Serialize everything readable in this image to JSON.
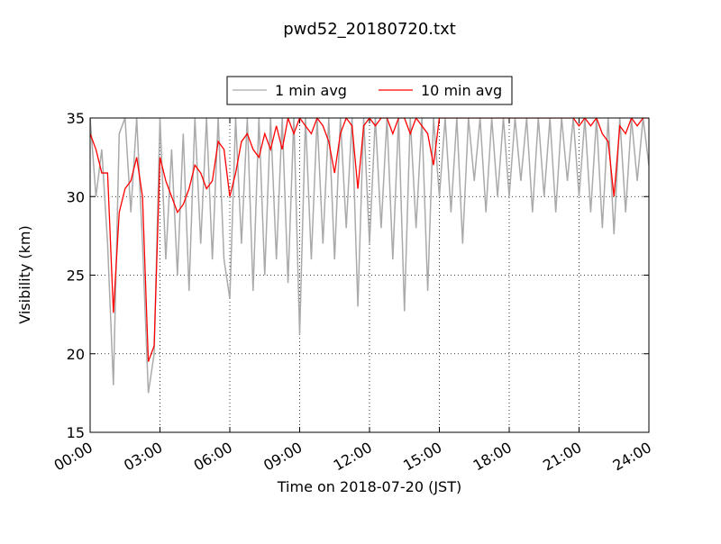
{
  "chart_data": {
    "type": "line",
    "title": "pwd52_20180720.txt",
    "xlabel": "Time on 2018-07-20 (JST)",
    "ylabel": "Visibility (km)",
    "x": [
      0,
      0.25,
      0.5,
      0.75,
      1,
      1.25,
      1.5,
      1.75,
      2,
      2.25,
      2.5,
      2.75,
      3,
      3.25,
      3.5,
      3.75,
      4,
      4.25,
      4.5,
      4.75,
      5,
      5.25,
      5.5,
      5.75,
      6,
      6.25,
      6.5,
      6.75,
      7,
      7.25,
      7.5,
      7.75,
      8,
      8.25,
      8.5,
      8.75,
      9,
      9.25,
      9.5,
      9.75,
      10,
      10.25,
      10.5,
      10.75,
      11,
      11.25,
      11.5,
      11.75,
      12,
      12.25,
      12.5,
      12.75,
      13,
      13.25,
      13.5,
      13.75,
      14,
      14.25,
      14.5,
      14.75,
      15,
      15.25,
      15.5,
      15.75,
      16,
      16.25,
      16.5,
      16.75,
      17,
      17.25,
      17.5,
      17.75,
      18,
      18.25,
      18.5,
      18.75,
      19,
      19.25,
      19.5,
      19.75,
      20,
      20.25,
      20.5,
      20.75,
      21,
      21.25,
      21.5,
      21.75,
      22,
      22.25,
      22.5,
      22.75,
      23,
      23.25,
      23.5,
      23.75,
      24
    ],
    "series": [
      {
        "name": "1 min avg",
        "color": "#aaaaaa",
        "values": [
          35,
          30,
          33,
          27,
          18,
          34,
          35,
          29,
          35,
          27,
          17.5,
          20,
          35,
          26,
          33,
          25,
          34,
          24,
          35,
          27,
          35,
          26,
          35,
          26,
          23.5,
          35,
          27,
          35,
          24,
          35,
          25,
          35,
          26,
          35,
          24.5,
          35,
          21.2,
          35,
          26,
          35,
          27,
          35,
          26,
          35,
          28,
          35,
          23,
          35,
          27,
          35,
          28,
          35,
          26,
          35,
          22.7,
          35,
          28,
          35,
          24,
          35,
          30,
          35,
          29,
          35,
          27,
          35,
          31,
          35,
          29,
          35,
          30,
          35,
          30,
          35,
          31,
          35,
          29,
          35,
          30,
          35,
          29,
          35,
          31,
          35,
          30,
          35,
          29,
          35,
          28,
          35,
          27.6,
          35,
          29,
          35,
          31,
          35,
          32
        ]
      },
      {
        "name": "10 min avg",
        "color": "#ff0000",
        "values": [
          34,
          33,
          31.5,
          31.5,
          22.6,
          29,
          30.5,
          31,
          32.5,
          30,
          19.5,
          20.5,
          32.5,
          31,
          30,
          29,
          29.5,
          30.5,
          32,
          31.5,
          30.5,
          31,
          33.5,
          33,
          30,
          31.5,
          33.5,
          34,
          33,
          32.5,
          34,
          33,
          34.5,
          33,
          35,
          34,
          35,
          34.5,
          34,
          35,
          34.5,
          33.5,
          31.5,
          34,
          35,
          34.5,
          30.5,
          34.5,
          35,
          34.5,
          35,
          35,
          34,
          35,
          35,
          34,
          35,
          34.5,
          34,
          32,
          35,
          35,
          35,
          35,
          35,
          35,
          35,
          35,
          35,
          35,
          35,
          35,
          35,
          35,
          35,
          35,
          35,
          35,
          35,
          35,
          35,
          35,
          35,
          35,
          34.5,
          35,
          34.5,
          35,
          34,
          33.5,
          30,
          34.5,
          34,
          35,
          34.5,
          35,
          35
        ]
      }
    ],
    "xlim": [
      0,
      24
    ],
    "xticks": [
      {
        "value": 0,
        "label": "00:00"
      },
      {
        "value": 3,
        "label": "03:00"
      },
      {
        "value": 6,
        "label": "06:00"
      },
      {
        "value": 9,
        "label": "09:00"
      },
      {
        "value": 12,
        "label": "12:00"
      },
      {
        "value": 15,
        "label": "15:00"
      },
      {
        "value": 18,
        "label": "18:00"
      },
      {
        "value": 21,
        "label": "21:00"
      },
      {
        "value": 24,
        "label": "24:00"
      }
    ],
    "ylim": [
      15,
      35
    ],
    "yticks": [
      15,
      20,
      25,
      30,
      35
    ],
    "grid": true,
    "legend": "top"
  }
}
